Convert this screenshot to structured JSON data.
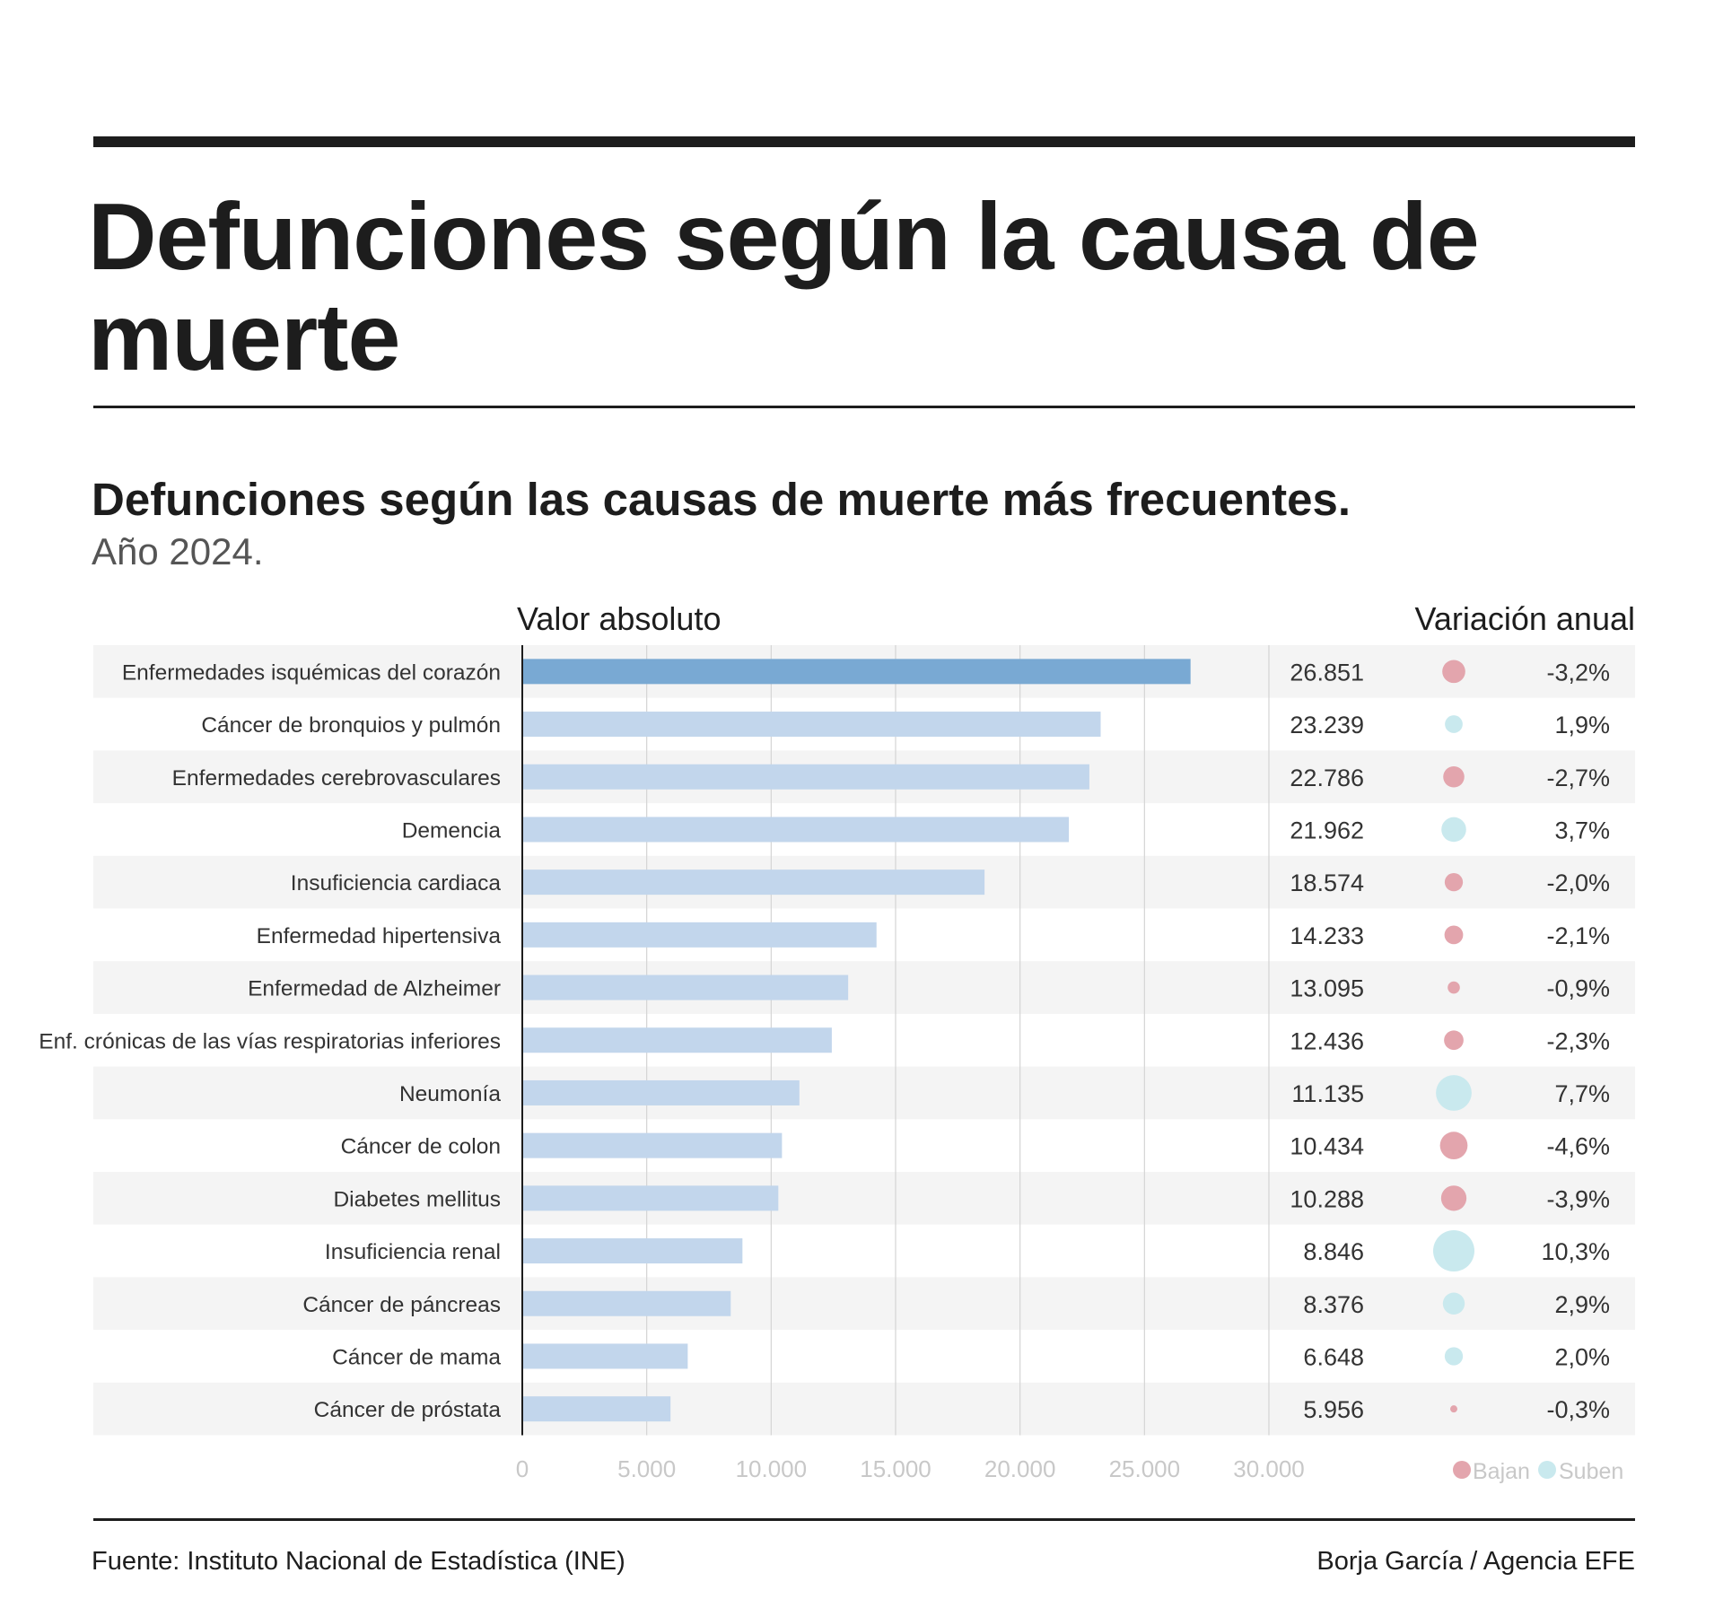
{
  "header": {
    "title": "Defunciones según la causa de muerte"
  },
  "chart": {
    "subtitle": "Defunciones según las causas de muerte más frecuentes.",
    "year_note": "Año 2024.",
    "col_absolute": "Valor absoluto",
    "col_variation": "Variación anual",
    "legend": {
      "down_label": "Bajan",
      "up_label": "Suben"
    }
  },
  "colors": {
    "highlight_bar": "#79a9d3",
    "bar": "#c2d6ec",
    "row_stripe": "#f4f4f4",
    "down_dot": "#e3a5ad",
    "up_dot": "#c9e9ee",
    "tick_label": "#c8c8c8",
    "gridline": "#d4d4d4"
  },
  "chart_data": {
    "type": "bar",
    "orientation": "horizontal",
    "categories": [
      "Enfermedades isquémicas del corazón",
      "Cáncer de bronquios y pulmón",
      "Enfermedades cerebrovasculares",
      "Demencia",
      "Insuficiencia cardiaca",
      "Enfermedad hipertensiva",
      "Enfermedad de Alzheimer",
      "Enf. crónicas de las vías respiratorias inferiores",
      "Neumonía",
      "Cáncer de colon",
      "Diabetes mellitus",
      "Insuficiencia renal",
      "Cáncer de páncreas",
      "Cáncer de mama",
      "Cáncer de próstata"
    ],
    "values": [
      26851,
      23239,
      22786,
      21962,
      18574,
      14233,
      13095,
      12436,
      11135,
      10434,
      10288,
      8846,
      8376,
      6648,
      5956
    ],
    "value_labels": [
      "26.851",
      "23.239",
      "22.786",
      "21.962",
      "18.574",
      "14.233",
      "13.095",
      "12.436",
      "11.135",
      "10.434",
      "10.288",
      "8.846",
      "8.376",
      "6.648",
      "5.956"
    ],
    "variation": [
      -3.2,
      1.9,
      -2.7,
      3.7,
      -2.0,
      -2.1,
      -0.9,
      -2.3,
      7.7,
      -4.6,
      -3.9,
      10.3,
      2.9,
      2.0,
      -0.3
    ],
    "variation_labels": [
      "-3,2%",
      "1,9%",
      "-2,7%",
      "3,7%",
      "-2,0%",
      "-2,1%",
      "-0,9%",
      "-2,3%",
      "7,7%",
      "-4,6%",
      "-3,9%",
      "10,3%",
      "2,9%",
      "2,0%",
      "-0,3%"
    ],
    "highlighted_index": 0,
    "xlim": [
      0,
      30000
    ],
    "xticks": [
      0,
      5000,
      10000,
      15000,
      20000,
      25000,
      30000
    ],
    "xtick_labels": [
      "0",
      "5.000",
      "10.000",
      "15.000",
      "20.000",
      "25.000",
      "30.000"
    ],
    "grid": true,
    "legend_position": "bottom-right"
  },
  "footer": {
    "source": "Fuente: Instituto Nacional de Estadística (INE)",
    "credit": "Borja García / Agencia EFE"
  }
}
